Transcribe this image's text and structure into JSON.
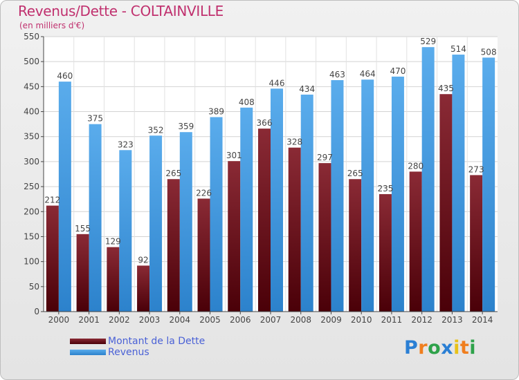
{
  "header": {
    "title": "Revenus/Dette - COLTAINVILLE",
    "subtitle": "(en milliers d'€)"
  },
  "legend": {
    "items": [
      {
        "label": "Montant de la Dette",
        "color": "#6d1420"
      },
      {
        "label": "Revenus",
        "color": "#4b9fe2"
      }
    ]
  },
  "logo": {
    "text": "Proxiti",
    "letters": [
      {
        "ch": "P",
        "color": "#2a7fd4"
      },
      {
        "ch": "r",
        "color": "#f07e1e"
      },
      {
        "ch": "o",
        "color": "#2ea24a"
      },
      {
        "ch": "x",
        "color": "#2a7fd4"
      },
      {
        "ch": "i",
        "color": "#e8c21a"
      },
      {
        "ch": "t",
        "color": "#f07e1e"
      },
      {
        "ch": "i",
        "color": "#2ea24a"
      }
    ]
  },
  "chart_data": {
    "type": "bar",
    "title": "Revenus/Dette - COLTAINVILLE",
    "subtitle": "(en milliers d'€)",
    "categories": [
      "2000",
      "2001",
      "2002",
      "2003",
      "2004",
      "2005",
      "2006",
      "2007",
      "2008",
      "2009",
      "2010",
      "2011",
      "2012",
      "2013",
      "2014"
    ],
    "series": [
      {
        "name": "Montant de la Dette",
        "color": "#6d1420",
        "values": [
          212,
          155,
          129,
          92,
          265,
          226,
          301,
          366,
          328,
          297,
          265,
          235,
          280,
          435,
          273
        ]
      },
      {
        "name": "Revenus",
        "color": "#4b9fe2",
        "values": [
          460,
          375,
          323,
          352,
          359,
          389,
          408,
          446,
          434,
          463,
          464,
          470,
          529,
          514,
          508
        ]
      }
    ],
    "ylim": [
      0,
      550
    ],
    "yticks": [
      0,
      50,
      100,
      150,
      200,
      250,
      300,
      350,
      400,
      450,
      500,
      550
    ],
    "grid": true,
    "legend_position": "bottom-left"
  }
}
